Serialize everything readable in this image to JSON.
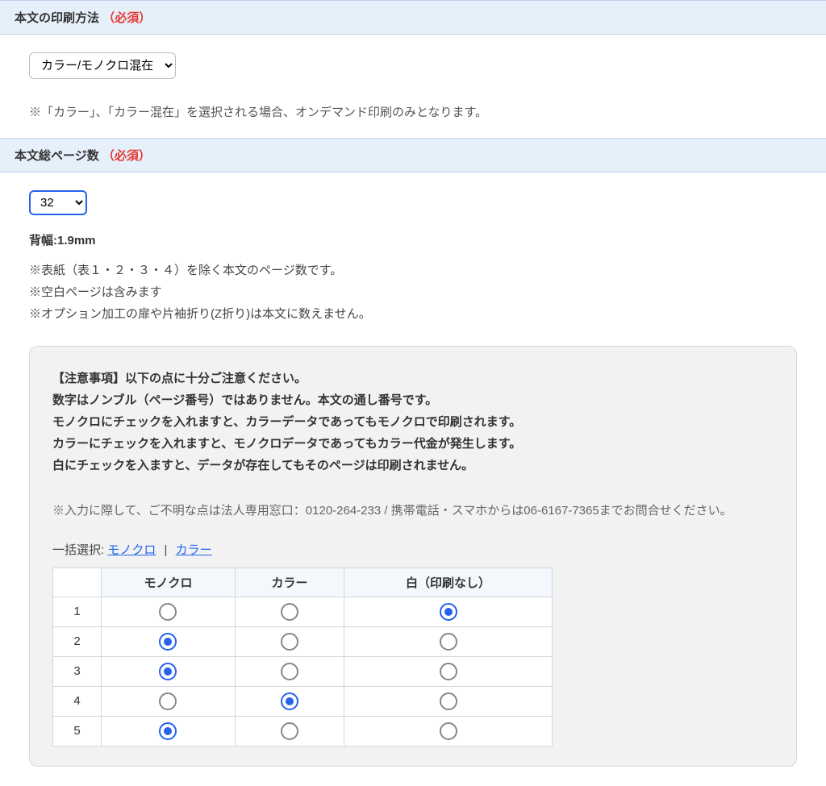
{
  "colors": {
    "header_bg": "#e6f0fa",
    "header_border": "#bcd3e8",
    "required": "#e53935",
    "link": "#2563eb",
    "select_blue_border": "#2563eb",
    "notice_bg": "#f2f2f2",
    "notice_border": "#d9d9d9",
    "table_border": "#d0d7de",
    "table_th_bg": "#f4f8fc",
    "radio_unchecked": "#888",
    "radio_checked": "#2563eb"
  },
  "section1": {
    "title": "本文の印刷方法",
    "required_label": "（必須）",
    "select_value": "カラー/モノクロ混在",
    "note": "※「カラー」、「カラー混在」を選択される場合、オンデマンド印刷のみとなります。"
  },
  "section2": {
    "title": "本文総ページ数",
    "required_label": "（必須）",
    "page_count_value": "32",
    "spine_label": "背幅:1.9mm",
    "sub_note_1": "※表紙（表１・２・３・４）を除く本文のページ数です。",
    "sub_note_2": "※空白ページは含みます",
    "sub_note_3": "※オプション加工の扉や片袖折り(Z折り)は本文に数えません。",
    "notice": {
      "line1": "【注意事項】以下の点に十分ご注意ください。",
      "line2": "数字はノンブル（ページ番号）ではありません。本文の通し番号です。",
      "line3": "モノクロにチェックを入れますと、カラーデータであってもモノクロで印刷されます。",
      "line4": "カラーにチェックを入れますと、モノクロデータであってもカラー代金が発生します。",
      "line5": "白にチェックを入ますと、データが存在してもそのページは印刷されません。",
      "sub": "※入力に際して、ご不明な点は法人専用窓口：0120-264-233 / 携帯電話・スマホからは06-6167-7365までお問合せください。"
    },
    "bulk": {
      "label": "一括選択:",
      "mono": "モノクロ",
      "separator": "|",
      "color": "カラー"
    },
    "table": {
      "headers": {
        "col0": "",
        "col1": "モノクロ",
        "col2": "カラー",
        "col3": "白（印刷なし）"
      },
      "rows": [
        {
          "num": "1",
          "selected": "white"
        },
        {
          "num": "2",
          "selected": "mono"
        },
        {
          "num": "3",
          "selected": "mono"
        },
        {
          "num": "4",
          "selected": "color"
        },
        {
          "num": "5",
          "selected": "mono"
        }
      ]
    }
  }
}
